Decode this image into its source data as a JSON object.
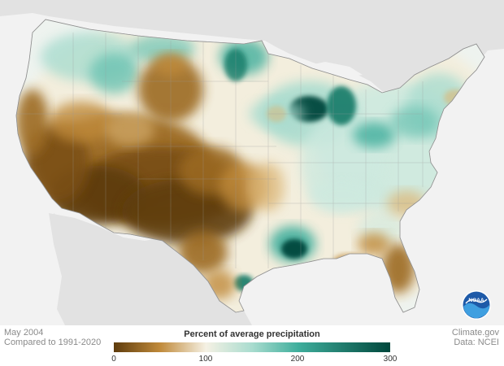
{
  "map": {
    "region": "Contiguous United States",
    "measure": "Percent of average precipitation",
    "color_stops": [
      {
        "value": 0,
        "color": "#5e3c0d"
      },
      {
        "value": 50,
        "color": "#c08a3a"
      },
      {
        "value": 100,
        "color": "#f5f1e4"
      },
      {
        "value": 150,
        "color": "#a9dccf"
      },
      {
        "value": 200,
        "color": "#3fae9c"
      },
      {
        "value": 300,
        "color": "#00473c"
      }
    ]
  },
  "footer": {
    "period": "May 2004",
    "baseline": "Compared to 1991-2020",
    "source_site": "Climate.gov",
    "source_data": "Data: NCEI"
  },
  "legend": {
    "title": "Percent of average precipitation",
    "ticks": [
      "0",
      "100",
      "200",
      "300"
    ]
  },
  "logo": {
    "text": "NOAA",
    "icon": "noaa-emblem-icon"
  }
}
